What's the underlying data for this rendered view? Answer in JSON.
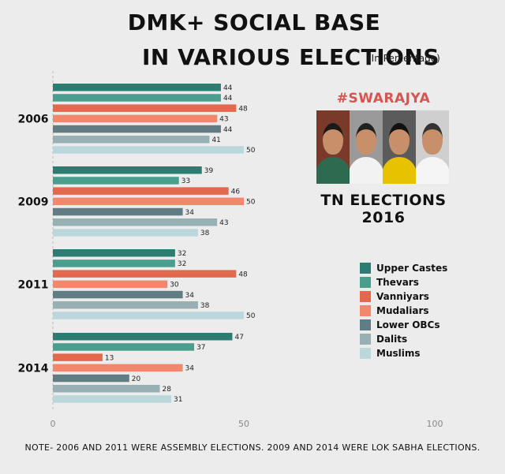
{
  "title_line1": "DMK+ SOCIAL BASE",
  "title_line2": "IN VARIOUS ELECTIONS",
  "subtitle": "(In Percentage)",
  "brand": "#SWARAJYA",
  "election_label": "TN ELECTIONS 2016",
  "note": "NOTE-  2006 AND 2011 WERE ASSEMBLY ELECTIONS. 2009 AND 2014 WERE LOK SABHA ELECTIONS.",
  "chart_data": {
    "type": "bar",
    "orientation": "horizontal",
    "title": "DMK+ SOCIAL BASE IN VARIOUS ELECTIONS",
    "subtitle": "(In Percentage)",
    "categories": [
      "2006",
      "2009",
      "2011",
      "2014"
    ],
    "xlim": [
      0,
      100
    ],
    "xticks": [
      0,
      50,
      100
    ],
    "legend_position": "right",
    "series": [
      {
        "name": "Upper Castes",
        "color": "#2a7d70",
        "values": [
          44,
          39,
          32,
          47
        ]
      },
      {
        "name": "Thevars",
        "color": "#4a9e8e",
        "values": [
          44,
          33,
          32,
          37
        ]
      },
      {
        "name": "Vanniyars",
        "color": "#e2694e",
        "values": [
          48,
          46,
          48,
          13
        ]
      },
      {
        "name": "Mudaliars",
        "color": "#f2876c",
        "values": [
          43,
          50,
          30,
          34
        ]
      },
      {
        "name": "Lower OBCs",
        "color": "#617c82",
        "values": [
          44,
          34,
          34,
          20
        ]
      },
      {
        "name": "Dalits",
        "color": "#98b0b4",
        "values": [
          41,
          43,
          38,
          28
        ]
      },
      {
        "name": "Muslims",
        "color": "#bcd7dc",
        "values": [
          50,
          38,
          50,
          31
        ]
      }
    ]
  },
  "photos": [
    {
      "name": "photo-1",
      "bg": "#7a3a2a",
      "cloth": "#2d6a4f",
      "hair": "#1a1a1a"
    },
    {
      "name": "photo-2",
      "bg": "#9a9a9a",
      "cloth": "#f2f2f2",
      "hair": "#222222"
    },
    {
      "name": "photo-3",
      "bg": "#5b5b5b",
      "cloth": "#e6c200",
      "hair": "#111111"
    },
    {
      "name": "photo-4",
      "bg": "#cfcfcf",
      "cloth": "#f5f5f5",
      "hair": "#333333"
    }
  ]
}
